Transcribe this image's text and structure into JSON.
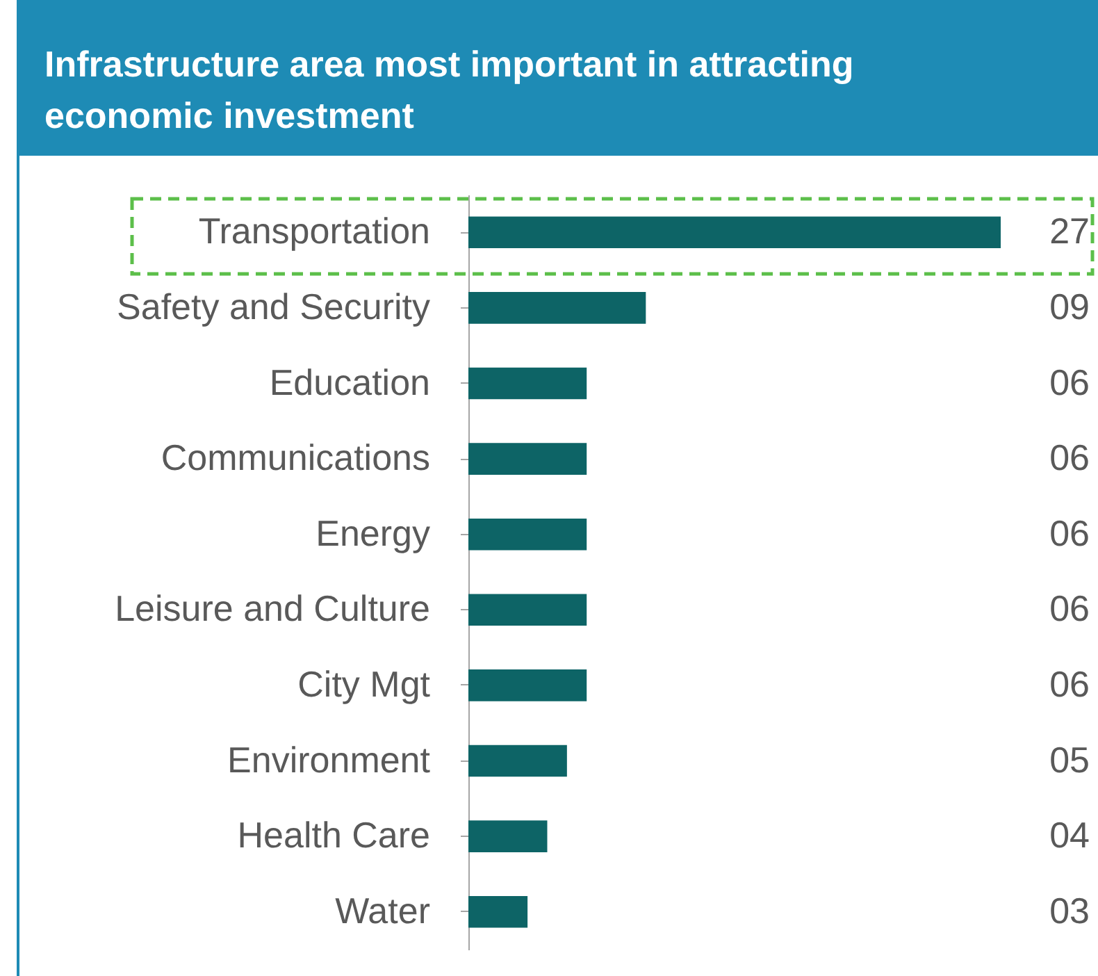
{
  "chart_data": {
    "type": "bar",
    "orientation": "horizontal",
    "title": "Infrastructure area most important in attracting economic investment",
    "categories": [
      "Transportation",
      "Safety and Security",
      "Education",
      "Communications",
      "Energy",
      "Leisure and Culture",
      "City Mgt",
      "Environment",
      "Health Care",
      "Water"
    ],
    "values": [
      27,
      9,
      6,
      6,
      6,
      6,
      6,
      5,
      4,
      3
    ],
    "value_labels": [
      "27",
      "09",
      "06",
      "06",
      "06",
      "06",
      "06",
      "05",
      "04",
      "03"
    ],
    "color": "#0d6466",
    "tick_labels": "y"
  }
}
